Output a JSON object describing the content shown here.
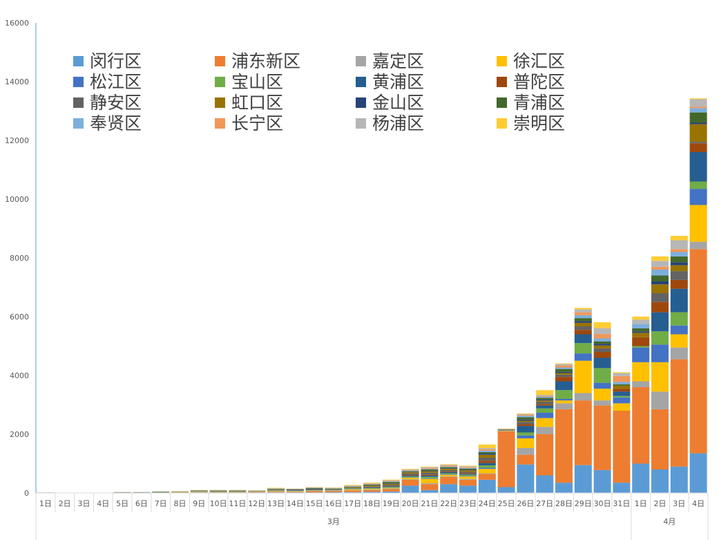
{
  "chart_data": {
    "type": "bar",
    "stacked": true,
    "ylim": [
      0,
      16000
    ],
    "yticks": [
      "0",
      "2000",
      "4000",
      "6000",
      "8000",
      "10000",
      "12000",
      "14000",
      "16000"
    ],
    "grid": false,
    "legend_position": "top-left",
    "categories": [
      "1日",
      "2日",
      "3日",
      "4日",
      "5日",
      "6日",
      "7日",
      "8日",
      "9日",
      "10日",
      "11日",
      "12日",
      "13日",
      "14日",
      "15日",
      "16日",
      "17日",
      "18日",
      "19日",
      "20日",
      "21日",
      "22日",
      "23日",
      "24日",
      "25日",
      "26日",
      "27日",
      "28日",
      "29日",
      "30日",
      "31日",
      "1日",
      "2日",
      "3日",
      "4日"
    ],
    "month_groups": [
      {
        "label": "3月",
        "count": 31
      },
      {
        "label": "4月",
        "count": 4
      }
    ],
    "series": [
      {
        "name": "闵行区",
        "color": "#5B9BD5",
        "values": [
          5,
          5,
          5,
          5,
          10,
          10,
          10,
          10,
          10,
          10,
          10,
          20,
          20,
          20,
          20,
          30,
          30,
          40,
          50,
          250,
          100,
          300,
          250,
          450,
          200,
          970,
          600,
          350,
          950,
          780,
          350,
          1000,
          800,
          900,
          1350
        ]
      },
      {
        "name": "浦东新区",
        "color": "#ED7D31",
        "values": [
          0,
          0,
          0,
          0,
          5,
          5,
          5,
          10,
          10,
          10,
          10,
          20,
          20,
          20,
          40,
          40,
          60,
          60,
          80,
          200,
          200,
          250,
          200,
          200,
          1900,
          330,
          1400,
          2500,
          2200,
          2200,
          2450,
          2600,
          2050,
          3650,
          6950
        ]
      },
      {
        "name": "嘉定区",
        "color": "#A5A5A5",
        "values": [
          0,
          0,
          0,
          0,
          0,
          0,
          0,
          0,
          10,
          5,
          5,
          5,
          10,
          10,
          10,
          10,
          10,
          20,
          20,
          20,
          30,
          20,
          30,
          20,
          5,
          230,
          250,
          200,
          250,
          170,
          0,
          200,
          600,
          400,
          250
        ]
      },
      {
        "name": "徐汇区",
        "color": "#FFC000",
        "values": [
          0,
          0,
          0,
          0,
          0,
          0,
          0,
          5,
          5,
          5,
          5,
          5,
          10,
          10,
          10,
          5,
          20,
          20,
          20,
          50,
          150,
          50,
          80,
          150,
          10,
          330,
          300,
          100,
          1100,
          400,
          250,
          650,
          1000,
          450,
          1250
        ]
      },
      {
        "name": "松江区",
        "color": "#4472C4",
        "values": [
          0,
          0,
          0,
          0,
          0,
          0,
          0,
          0,
          5,
          5,
          5,
          0,
          5,
          5,
          5,
          5,
          5,
          5,
          5,
          10,
          20,
          20,
          20,
          40,
          5,
          100,
          180,
          50,
          250,
          200,
          200,
          500,
          600,
          300,
          550
        ]
      },
      {
        "name": "宝山区",
        "color": "#70AD47",
        "values": [
          0,
          0,
          0,
          0,
          0,
          0,
          5,
          5,
          10,
          10,
          10,
          5,
          10,
          10,
          10,
          10,
          20,
          20,
          30,
          30,
          50,
          30,
          40,
          80,
          5,
          100,
          150,
          300,
          350,
          500,
          50,
          50,
          450,
          450,
          250
        ]
      },
      {
        "name": "黄浦区",
        "color": "#255E91",
        "values": [
          5,
          0,
          0,
          0,
          0,
          0,
          5,
          0,
          5,
          5,
          5,
          0,
          5,
          10,
          10,
          5,
          10,
          20,
          20,
          30,
          40,
          40,
          30,
          80,
          5,
          220,
          100,
          300,
          300,
          350,
          150,
          0,
          650,
          800,
          1000
        ]
      },
      {
        "name": "普陀区",
        "color": "#9E480E",
        "values": [
          0,
          0,
          0,
          0,
          0,
          0,
          0,
          0,
          0,
          0,
          0,
          0,
          0,
          0,
          0,
          0,
          5,
          10,
          10,
          20,
          30,
          20,
          30,
          80,
          5,
          60,
          50,
          150,
          150,
          200,
          100,
          300,
          350,
          300,
          300
        ]
      },
      {
        "name": "静安区",
        "color": "#636363",
        "values": [
          0,
          0,
          0,
          0,
          0,
          0,
          5,
          5,
          5,
          10,
          10,
          5,
          10,
          10,
          10,
          10,
          10,
          20,
          40,
          50,
          70,
          50,
          40,
          100,
          10,
          80,
          80,
          80,
          120,
          120,
          0,
          0,
          300,
          300,
          50
        ]
      },
      {
        "name": "虹口区",
        "color": "#997300",
        "values": [
          0,
          0,
          0,
          0,
          0,
          0,
          5,
          5,
          10,
          10,
          10,
          5,
          20,
          5,
          10,
          10,
          20,
          30,
          40,
          40,
          50,
          50,
          50,
          100,
          5,
          40,
          40,
          50,
          120,
          100,
          100,
          150,
          300,
          200,
          600
        ]
      },
      {
        "name": "金山区",
        "color": "#264478",
        "values": [
          0,
          0,
          0,
          0,
          0,
          0,
          0,
          0,
          5,
          5,
          5,
          0,
          5,
          20,
          20,
          5,
          5,
          10,
          20,
          10,
          20,
          20,
          20,
          40,
          5,
          40,
          30,
          40,
          60,
          60,
          0,
          50,
          100,
          100,
          50
        ]
      },
      {
        "name": "青浦区",
        "color": "#43682B",
        "values": [
          5,
          5,
          5,
          5,
          10,
          10,
          10,
          5,
          10,
          10,
          10,
          10,
          20,
          10,
          20,
          20,
          20,
          30,
          40,
          30,
          40,
          30,
          40,
          50,
          10,
          80,
          60,
          100,
          100,
          80,
          50,
          100,
          200,
          200,
          350
        ]
      },
      {
        "name": "奉贤区",
        "color": "#7CAFDD",
        "values": [
          0,
          0,
          0,
          0,
          5,
          5,
          5,
          5,
          5,
          5,
          5,
          5,
          10,
          5,
          10,
          10,
          10,
          10,
          20,
          20,
          20,
          20,
          20,
          50,
          5,
          50,
          40,
          50,
          100,
          100,
          80,
          150,
          200,
          150,
          150
        ]
      },
      {
        "name": "长宁区",
        "color": "#F1975A",
        "values": [
          0,
          0,
          0,
          0,
          0,
          0,
          0,
          5,
          5,
          5,
          5,
          5,
          10,
          5,
          10,
          10,
          10,
          20,
          20,
          20,
          30,
          30,
          30,
          50,
          5,
          30,
          30,
          70,
          100,
          150,
          200,
          0,
          100,
          100,
          50
        ]
      },
      {
        "name": "杨浦区",
        "color": "#B7B7B7",
        "values": [
          0,
          0,
          0,
          0,
          5,
          5,
          5,
          5,
          5,
          5,
          5,
          5,
          10,
          5,
          10,
          10,
          20,
          20,
          20,
          20,
          30,
          30,
          30,
          40,
          10,
          30,
          30,
          50,
          100,
          200,
          100,
          150,
          200,
          300,
          250
        ]
      },
      {
        "name": "崇明区",
        "color": "#FFCD33",
        "values": [
          0,
          0,
          0,
          0,
          0,
          0,
          0,
          5,
          5,
          5,
          5,
          5,
          10,
          5,
          10,
          10,
          20,
          20,
          20,
          20,
          20,
          20,
          20,
          120,
          10,
          20,
          160,
          20,
          50,
          200,
          30,
          100,
          150,
          150,
          30
        ]
      }
    ]
  }
}
